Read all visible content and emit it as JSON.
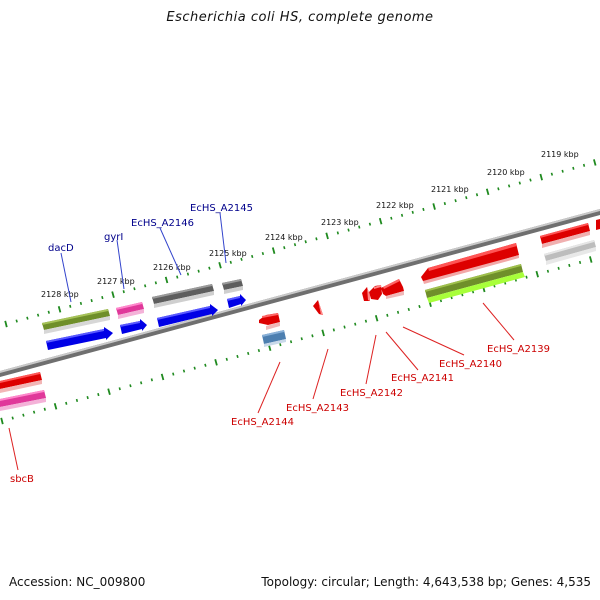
{
  "title": "Escherichia coli HS, complete genome",
  "footer": {
    "accession": "Accession: NC_009800",
    "info": "Topology: circular; Length: 4,643,538 bp; Genes: 4,535"
  },
  "colors": {
    "ruler_tick": "#1f8a1f",
    "backbone": "#8a8a8a",
    "label_blue": "#00008b",
    "label_red": "#cc0000",
    "leader_blue": "#3344cc",
    "leader_red": "#dd2222"
  },
  "ruler_labels": [
    "2119 kbp",
    "2120 kbp",
    "2121 kbp",
    "2122 kbp",
    "2123 kbp",
    "2124 kbp",
    "2125 kbp",
    "2126 kbp",
    "2127 kbp",
    "2128 kbp"
  ],
  "gene_labels": {
    "top": [
      "dacD",
      "gyrI",
      "EcHS_A2146",
      "EcHS_A2145"
    ],
    "bottom": [
      "sbcB",
      "EcHS_A2144",
      "EcHS_A2143",
      "EcHS_A2142",
      "EcHS_A2141",
      "EcHS_A2140",
      "EcHS_A2139"
    ]
  }
}
